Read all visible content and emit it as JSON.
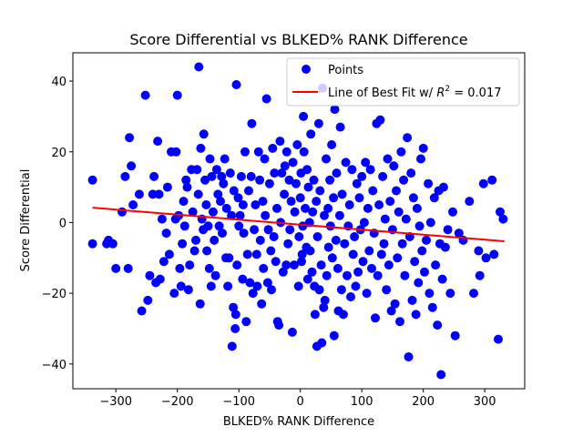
{
  "chart_data": {
    "type": "scatter",
    "title": "Score Differential vs BLKED% RANK Difference",
    "xlabel": "BLKED% RANK Difference",
    "ylabel": "Score Differential",
    "xlim": [
      -370,
      365
    ],
    "ylim": [
      -47,
      48
    ],
    "xticks": [
      -300,
      -200,
      -100,
      0,
      100,
      200,
      300
    ],
    "xtick_labels": [
      "−300",
      "−200",
      "−100",
      "0",
      "100",
      "200",
      "300"
    ],
    "yticks": [
      -40,
      -20,
      0,
      20,
      40
    ],
    "ytick_labels": [
      "−40",
      "−20",
      "0",
      "20",
      "40"
    ],
    "grid": false,
    "legend_position": "upper-right",
    "colors": {
      "points": "#0000ff",
      "fit_line": "#ff0000"
    },
    "series": [
      {
        "name": "Points",
        "kind": "scatter",
        "points": [
          [
            -338,
            12
          ],
          [
            -338,
            -6
          ],
          [
            -315,
            -6
          ],
          [
            -312,
            -5
          ],
          [
            -305,
            -6
          ],
          [
            -300,
            -13
          ],
          [
            -290,
            3
          ],
          [
            -285,
            13
          ],
          [
            -280,
            -13
          ],
          [
            -278,
            24
          ],
          [
            -275,
            16
          ],
          [
            -272,
            5
          ],
          [
            -262,
            8
          ],
          [
            -258,
            -25
          ],
          [
            -252,
            36
          ],
          [
            -248,
            -22
          ],
          [
            -245,
            -15
          ],
          [
            -240,
            8
          ],
          [
            -238,
            13
          ],
          [
            -235,
            -17
          ],
          [
            -232,
            23
          ],
          [
            -230,
            8
          ],
          [
            -228,
            -16
          ],
          [
            -225,
            1
          ],
          [
            -222,
            -11
          ],
          [
            -218,
            -3
          ],
          [
            -216,
            10
          ],
          [
            -213,
            -9
          ],
          [
            -210,
            20
          ],
          [
            -205,
            -20
          ],
          [
            -203,
            1
          ],
          [
            -202,
            20
          ],
          [
            -200,
            36
          ],
          [
            -198,
            2
          ],
          [
            -196,
            -13
          ],
          [
            -194,
            -18
          ],
          [
            -192,
            -6
          ],
          [
            -190,
            6
          ],
          [
            -188,
            -1
          ],
          [
            -186,
            12
          ],
          [
            -184,
            10
          ],
          [
            -182,
            -19
          ],
          [
            -180,
            -12
          ],
          [
            -177,
            15
          ],
          [
            -175,
            3
          ],
          [
            -172,
            -8
          ],
          [
            -170,
            -5
          ],
          [
            -168,
            15
          ],
          [
            -166,
            8
          ],
          [
            -165,
            44
          ],
          [
            -163,
            -23
          ],
          [
            -162,
            21
          ],
          [
            -160,
            1
          ],
          [
            -158,
            -2
          ],
          [
            -157,
            25
          ],
          [
            -155,
            12
          ],
          [
            -153,
            5
          ],
          [
            -152,
            -8
          ],
          [
            -150,
            -1
          ],
          [
            -148,
            -13
          ],
          [
            -147,
            18
          ],
          [
            -145,
            -18
          ],
          [
            -144,
            13
          ],
          [
            -142,
            3
          ],
          [
            -140,
            -5
          ],
          [
            -138,
            -15
          ],
          [
            -136,
            15
          ],
          [
            -134,
            8
          ],
          [
            -132,
            -1
          ],
          [
            -130,
            6
          ],
          [
            -128,
            13
          ],
          [
            -127,
            -3
          ],
          [
            -125,
            11
          ],
          [
            -123,
            18
          ],
          [
            -121,
            -10
          ],
          [
            -120,
            4
          ],
          [
            -118,
            -18
          ],
          [
            -116,
            -10
          ],
          [
            -114,
            14
          ],
          [
            -112,
            2
          ],
          [
            -111,
            -35
          ],
          [
            -109,
            -24
          ],
          [
            -108,
            9
          ],
          [
            -106,
            -30
          ],
          [
            -105,
            -26
          ],
          [
            -104,
            39
          ],
          [
            -103,
            -12
          ],
          [
            -101,
            7
          ],
          [
            -100,
            -1
          ],
          [
            -98,
            2
          ],
          [
            -96,
            13
          ],
          [
            -94,
            -16
          ],
          [
            -93,
            5
          ],
          [
            -92,
            -3
          ],
          [
            -90,
            20
          ],
          [
            -88,
            -28
          ],
          [
            -86,
            -9
          ],
          [
            -84,
            9
          ],
          [
            -82,
            -17
          ],
          [
            -80,
            13
          ],
          [
            -79,
            28
          ],
          [
            -77,
            -20
          ],
          [
            -75,
            -2
          ],
          [
            -73,
            5
          ],
          [
            -71,
            -9
          ],
          [
            -70,
            -18
          ],
          [
            -68,
            20
          ],
          [
            -66,
            12
          ],
          [
            -65,
            -5
          ],
          [
            -63,
            -23
          ],
          [
            -61,
            6
          ],
          [
            -60,
            -13
          ],
          [
            -58,
            18
          ],
          [
            -57,
            2
          ],
          [
            -55,
            35
          ],
          [
            -53,
            -17
          ],
          [
            -52,
            -2
          ],
          [
            -50,
            11
          ],
          [
            -48,
            -8
          ],
          [
            -47,
            -19
          ],
          [
            -45,
            21
          ],
          [
            -43,
            -4
          ],
          [
            -42,
            14
          ],
          [
            -40,
            -11
          ],
          [
            -38,
            4
          ],
          [
            -37,
            -28
          ],
          [
            -35,
            -29
          ],
          [
            -33,
            23
          ],
          [
            -32,
            0
          ],
          [
            -30,
            14
          ],
          [
            -28,
            -14
          ],
          [
            -26,
            8
          ],
          [
            -25,
            16
          ],
          [
            -23,
            -12
          ],
          [
            -22,
            20
          ],
          [
            -20,
            -6
          ],
          [
            -18,
            12
          ],
          [
            -17,
            -2
          ],
          [
            -15,
            6
          ],
          [
            -13,
            -31
          ],
          [
            -12,
            17
          ],
          [
            -10,
            -12
          ],
          [
            -9,
            3
          ],
          [
            -7,
            11
          ],
          [
            -5,
            22
          ],
          [
            -3,
            -18
          ],
          [
            -2,
            -4
          ],
          [
            0,
            7
          ],
          [
            1,
            14
          ],
          [
            2,
            -11
          ],
          [
            3,
            -9
          ],
          [
            4,
            -1
          ],
          [
            5,
            30
          ],
          [
            6,
            20
          ],
          [
            8,
            4
          ],
          [
            10,
            -7
          ],
          [
            11,
            15
          ],
          [
            12,
            -16
          ],
          [
            13,
            10
          ],
          [
            15,
            0
          ],
          [
            16,
            -8
          ],
          [
            17,
            25
          ],
          [
            19,
            -14
          ],
          [
            20,
            3
          ],
          [
            22,
            12
          ],
          [
            23,
            -18
          ],
          [
            24,
            -26
          ],
          [
            26,
            6
          ],
          [
            27,
            -35
          ],
          [
            28,
            -4
          ],
          [
            30,
            28
          ],
          [
            31,
            -19
          ],
          [
            32,
            9
          ],
          [
            34,
            -12
          ],
          [
            35,
            -34
          ],
          [
            36,
            38
          ],
          [
            38,
            -24
          ],
          [
            39,
            2
          ],
          [
            40,
            -22
          ],
          [
            42,
            18
          ],
          [
            43,
            -15
          ],
          [
            45,
            4
          ],
          [
            46,
            -7
          ],
          [
            48,
            12
          ],
          [
            49,
            -1
          ],
          [
            51,
            22
          ],
          [
            52,
            -10
          ],
          [
            54,
            7
          ],
          [
            55,
            -32
          ],
          [
            56,
            32
          ],
          [
            58,
            -5
          ],
          [
            59,
            14
          ],
          [
            61,
            -13
          ],
          [
            62,
            -25
          ],
          [
            64,
            2
          ],
          [
            65,
            27
          ],
          [
            67,
            -19
          ],
          [
            68,
            8
          ],
          [
            70,
            -26
          ],
          [
            72,
            -6
          ],
          [
            74,
            17
          ],
          [
            76,
            -15
          ],
          [
            78,
            -1
          ],
          [
            80,
            5
          ],
          [
            82,
            -21
          ],
          [
            84,
            15
          ],
          [
            86,
            -9
          ],
          [
            88,
            -4
          ],
          [
            90,
            -18
          ],
          [
            92,
            11
          ],
          [
            94,
            -14
          ],
          [
            96,
            7
          ],
          [
            98,
            -2
          ],
          [
            100,
            13
          ],
          [
            102,
            -11
          ],
          [
            104,
            0
          ],
          [
            106,
            17
          ],
          [
            108,
            -20
          ],
          [
            110,
            4
          ],
          [
            112,
            -8
          ],
          [
            114,
            15
          ],
          [
            116,
            -13
          ],
          [
            118,
            9
          ],
          [
            120,
            -3
          ],
          [
            122,
            -27
          ],
          [
            124,
            28
          ],
          [
            126,
            -15
          ],
          [
            128,
            5
          ],
          [
            130,
            29
          ],
          [
            132,
            -9
          ],
          [
            134,
            13
          ],
          [
            136,
            -6
          ],
          [
            138,
            1
          ],
          [
            140,
            -19
          ],
          [
            142,
            18
          ],
          [
            144,
            -12
          ],
          [
            146,
            6
          ],
          [
            148,
            -25
          ],
          [
            150,
            -2
          ],
          [
            152,
            16
          ],
          [
            154,
            -23
          ],
          [
            156,
            9
          ],
          [
            158,
            -10
          ],
          [
            160,
            3
          ],
          [
            162,
            -28
          ],
          [
            164,
            20
          ],
          [
            166,
            -6
          ],
          [
            168,
            12
          ],
          [
            170,
            -15
          ],
          [
            172,
            1
          ],
          [
            174,
            24
          ],
          [
            176,
            -38
          ],
          [
            178,
            -4
          ],
          [
            180,
            14
          ],
          [
            182,
            -22
          ],
          [
            184,
            7
          ],
          [
            186,
            -11
          ],
          [
            188,
            -26
          ],
          [
            190,
            4
          ],
          [
            192,
            -17
          ],
          [
            194,
            -1
          ],
          [
            196,
            18
          ],
          [
            198,
            -8
          ],
          [
            200,
            21
          ],
          [
            202,
            -14
          ],
          [
            205,
            -5
          ],
          [
            208,
            11
          ],
          [
            210,
            -20
          ],
          [
            212,
            0
          ],
          [
            215,
            -24
          ],
          [
            218,
            7
          ],
          [
            220,
            -12
          ],
          [
            223,
            -29
          ],
          [
            225,
            9
          ],
          [
            227,
            -6
          ],
          [
            229,
            -43
          ],
          [
            231,
            -16
          ],
          [
            233,
            10
          ],
          [
            236,
            -7
          ],
          [
            240,
            -2
          ],
          [
            244,
            -20
          ],
          [
            248,
            3
          ],
          [
            252,
            -32
          ],
          [
            258,
            -3
          ],
          [
            265,
            -5
          ],
          [
            275,
            6
          ],
          [
            282,
            -20
          ],
          [
            290,
            -8
          ],
          [
            292,
            -15
          ],
          [
            298,
            11
          ],
          [
            302,
            -10
          ],
          [
            312,
            12
          ],
          [
            315,
            -9
          ],
          [
            322,
            -33
          ],
          [
            325,
            3
          ],
          [
            330,
            1
          ]
        ]
      },
      {
        "name": "Line of Best Fit w/ R² = 0.017",
        "kind": "line",
        "points": [
          [
            -338,
            4.2
          ],
          [
            332,
            -5.3
          ]
        ]
      }
    ],
    "legend_entries": [
      {
        "label_prefix": "Line of Best Fit w/ ",
        "r_symbol": "R",
        "r_power": "2",
        "r_value": " = 0.017"
      }
    ]
  }
}
